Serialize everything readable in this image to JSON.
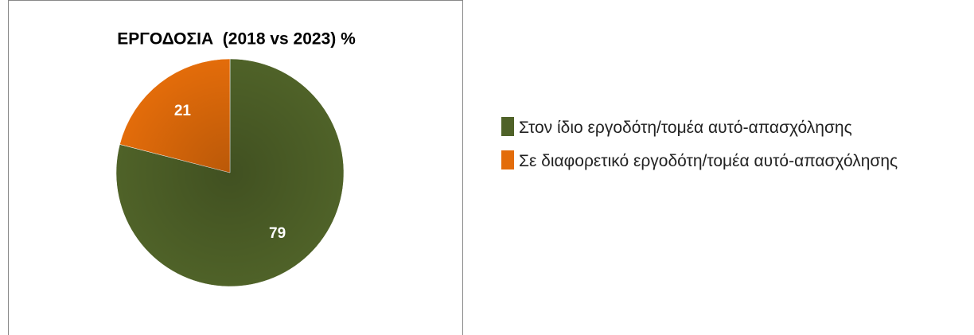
{
  "chart_data": {
    "type": "pie",
    "title": "ΕΡΓΟΔΟΣΙΑ  (2018 vs 2023) %",
    "categories": [
      "Στον ίδιο εργοδότη/τομέα αυτό-απασχόλησης",
      "Σε διαφορετικό εργοδότη/τομέα αυτό-απασχόλησης"
    ],
    "values": [
      79,
      21
    ],
    "colors": [
      "#4f6228",
      "#e36c0a"
    ],
    "legend": "right"
  }
}
